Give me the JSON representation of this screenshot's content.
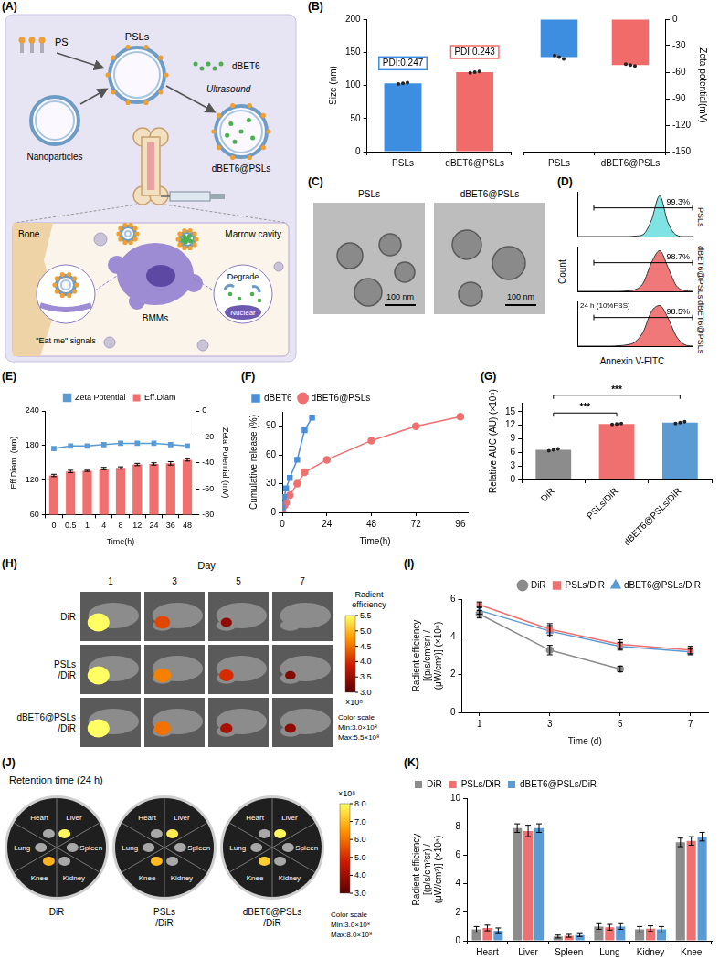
{
  "chart_data": [
    {
      "panel": "(B)",
      "type": "bar",
      "categories": [
        "PSLs",
        "dBET6@PSLs"
      ],
      "values": [
        103,
        120
      ],
      "colors": [
        "#3d8ee0",
        "#f26b6b"
      ],
      "points": [
        [
          102,
          103,
          104
        ],
        [
          119,
          120,
          121
        ]
      ],
      "annotations": [
        "PDI:0.247",
        "PDI:0.243"
      ],
      "y_label": "Size (nm)",
      "ylim": [
        0,
        200
      ],
      "yticks": [
        0,
        50,
        100,
        150,
        200
      ]
    },
    {
      "type": "bar",
      "categories": [
        "PSLs",
        "dBET6@PSLs"
      ],
      "values": [
        -43,
        -52
      ],
      "colors": [
        "#3d8ee0",
        "#f26b6b"
      ],
      "points": [
        [
          -41,
          -43,
          -45
        ],
        [
          -51,
          -52,
          -53
        ]
      ],
      "axis": "y2",
      "y2_label": "Zeta potential(mV)",
      "y2lim": [
        -150,
        0
      ],
      "y2ticks": [
        -150,
        -120,
        -90,
        -60,
        -30,
        0
      ]
    },
    {
      "panel": "(D)",
      "type": "area",
      "x_label": "Annexin V-FITC",
      "y_label": "Count",
      "x": [
        0,
        1,
        2,
        3,
        4,
        5,
        6,
        7,
        8,
        9,
        10,
        11,
        12,
        13,
        14
      ],
      "xlim": [
        0,
        14
      ],
      "ylim": [
        0,
        110
      ],
      "tick_labels": false,
      "series": [
        {
          "name": "PSLs",
          "color": "#7fe3e3",
          "values": [
            0,
            0,
            0,
            0,
            0,
            0,
            0,
            1,
            5,
            40,
            100,
            35,
            4,
            0,
            0
          ],
          "gate": [
            2,
            14
          ],
          "gate_label": "99.3%"
        },
        {
          "name": "dBET6@PSLs",
          "color": "#f07878",
          "values": [
            0,
            0,
            0,
            0,
            0,
            0,
            1,
            4,
            20,
            70,
            100,
            60,
            15,
            2,
            0
          ],
          "gate": [
            2,
            14
          ],
          "gate_label": "98.7%"
        },
        {
          "name": "dBET6@PSLs",
          "color": "#f07878",
          "annotation": "24 h (10%FBS)",
          "values": [
            0,
            0,
            0,
            0,
            0,
            1,
            3,
            10,
            35,
            85,
            100,
            70,
            25,
            4,
            0
          ],
          "gate": [
            2,
            14
          ],
          "gate_label": "98.5%"
        }
      ]
    },
    {
      "panel": "(E)",
      "type": "bar",
      "categories": [
        "0",
        "0.5",
        "1",
        "4",
        "8",
        "12",
        "24",
        "36",
        "48"
      ],
      "x_label": "Time(h)",
      "legend": "top",
      "series": [
        {
          "name": "Eff.Diam",
          "type": "bar",
          "color": "#f07070",
          "values": [
            128,
            135,
            136,
            140,
            141,
            147,
            148,
            149,
            155
          ],
          "errors": [
            2,
            2,
            1,
            2,
            2,
            2,
            2,
            3,
            2
          ]
        },
        {
          "name": "Zeta Potential",
          "type": "line",
          "color": "#5b9bd5",
          "marker": "square",
          "axis": "y2",
          "values": [
            -29,
            -27,
            -27,
            -26,
            -25,
            -25,
            -25,
            -26,
            -27
          ]
        }
      ],
      "y_label": "Eff.Diam. (nm)",
      "ylim": [
        60,
        240
      ],
      "yticks": [
        60,
        120,
        180,
        240
      ],
      "y2_label": "Zeta Potential (mV)",
      "y2lim": [
        -80,
        0
      ],
      "y2ticks": [
        -80,
        -60,
        -40,
        -20,
        0
      ]
    },
    {
      "panel": "(F)",
      "type": "line",
      "x_label": "Time(h)",
      "y_label": "Cumulative release (%)",
      "xlim": [
        0,
        100
      ],
      "xticks": [
        0,
        24,
        48,
        72,
        96
      ],
      "ylim": [
        0,
        105
      ],
      "yticks": [
        0,
        30,
        60,
        90
      ],
      "legend": "top-left",
      "series": [
        {
          "name": "dBET6",
          "color": "#4a90d9",
          "marker": "square",
          "x": [
            0,
            1,
            2,
            4,
            8,
            12,
            16
          ],
          "values": [
            5,
            16,
            25,
            36,
            55,
            86,
            99
          ]
        },
        {
          "name": "dBET6@PSLs",
          "color": "#f07070",
          "marker": "circle",
          "x": [
            0,
            1,
            2,
            4,
            8,
            12,
            24,
            48,
            72,
            96
          ],
          "values": [
            2,
            7,
            10,
            18,
            30,
            42,
            55,
            75,
            90,
            100
          ]
        }
      ]
    },
    {
      "panel": "(G)",
      "type": "bar",
      "categories": [
        "DiR",
        "PSLs/DiR",
        "dBET6@PSLs/DiR"
      ],
      "values": [
        6.6,
        12.3,
        12.6
      ],
      "colors": [
        "#8c8c8c",
        "#f07070",
        "#5b9bd5"
      ],
      "points": [
        [
          6.4,
          6.6,
          6.8
        ],
        [
          12.2,
          12.3,
          12.4
        ],
        [
          12.4,
          12.6,
          12.8
        ]
      ],
      "y_label": "Relative AUC (AU) (×10⁸)",
      "ylim": [
        0,
        17
      ],
      "yticks": [
        0,
        3,
        6,
        9,
        12,
        15
      ],
      "annotations": [
        {
          "from": "DiR",
          "to": "PSLs/DiR",
          "text": "***"
        },
        {
          "from": "DiR",
          "to": "dBET6@PSLs/DiR",
          "text": "***"
        }
      ]
    },
    {
      "panel": "(I)",
      "type": "line",
      "x": [
        1,
        3,
        5,
        7
      ],
      "x_label": "Time (d)",
      "y_label": "Radient efficiency [(p/s/cm²sr) / (μW/cm²)] (×10⁸)",
      "xlim": [
        0.5,
        7.5
      ],
      "xticks": [
        1,
        3,
        5,
        7
      ],
      "ylim": [
        0,
        6
      ],
      "yticks": [
        0,
        2,
        4,
        6
      ],
      "legend": "top-right",
      "series": [
        {
          "name": "DiR",
          "color": "#8c8c8c",
          "marker": "circle",
          "values": [
            5.2,
            3.3,
            2.3,
            null
          ],
          "errors": [
            0.2,
            0.25,
            0.15,
            null
          ]
        },
        {
          "name": "PSLs/DiR",
          "color": "#f07070",
          "marker": "square",
          "values": [
            5.7,
            4.4,
            3.6,
            3.3
          ],
          "errors": [
            0.15,
            0.3,
            0.25,
            0.2
          ]
        },
        {
          "name": "dBET6@PSLs/DiR",
          "color": "#5b9bd5",
          "marker": "triangle",
          "values": [
            5.4,
            4.3,
            3.5,
            3.2
          ],
          "errors": [
            0.2,
            0.3,
            0.2,
            0.15
          ]
        }
      ]
    },
    {
      "panel": "(K)",
      "type": "bar",
      "categories": [
        "Heart",
        "Liver",
        "Spleen",
        "Lung",
        "Kidney",
        "Knee"
      ],
      "y_label": "Radient efficiency [(p/s/cm²sr) / (μW/cm²)] (×10⁸)",
      "ylim": [
        0,
        10
      ],
      "yticks": [
        0,
        2,
        4,
        6,
        8,
        10
      ],
      "legend": "top-left",
      "series": [
        {
          "name": "DiR",
          "color": "#8c8c8c",
          "values": [
            0.8,
            7.9,
            0.3,
            1.0,
            0.8,
            6.9
          ],
          "errors": [
            0.2,
            0.3,
            0.1,
            0.2,
            0.2,
            0.3
          ]
        },
        {
          "name": "PSLs/DiR",
          "color": "#f07070",
          "values": [
            0.9,
            7.7,
            0.35,
            0.95,
            0.85,
            7.0
          ],
          "errors": [
            0.2,
            0.4,
            0.1,
            0.2,
            0.2,
            0.3
          ]
        },
        {
          "name": "dBET6@PSLs/DiR",
          "color": "#5b9bd5",
          "values": [
            0.7,
            7.9,
            0.4,
            1.0,
            0.8,
            7.3
          ],
          "errors": [
            0.2,
            0.3,
            0.1,
            0.2,
            0.2,
            0.3
          ]
        }
      ]
    }
  ],
  "diagrams": {
    "A": {
      "panel": "(A)",
      "labels": {
        "ps": "PS",
        "psls": "PSLs",
        "dbet6": "dBET6",
        "ultrasound": "Ultrasound",
        "nanoparticles": "Nanoparticles",
        "loaded": "dBET6@PSLs",
        "bone": "Bone",
        "marrow": "Marrow cavity",
        "bmms": "BMMs",
        "eat_me": "\"Eat me\" signals",
        "degrade": "Degrade",
        "nuclear": "Nuclear"
      }
    },
    "C": {
      "panel": "(C)",
      "images": [
        {
          "title": "PSLs",
          "scale_bar": "100 nm"
        },
        {
          "title": "dBET6@PSLs",
          "scale_bar": "100 nm"
        }
      ]
    },
    "H": {
      "panel": "(H)",
      "header": "Day",
      "days": [
        "1",
        "3",
        "5",
        "7"
      ],
      "rows": [
        "DiR",
        "PSLs/DiR",
        "dBET6@PSLs/DiR"
      ],
      "cells": [
        [
          5.5,
          4.2,
          3.4,
          null
        ],
        [
          5.5,
          4.6,
          4.0,
          3.3
        ],
        [
          5.5,
          4.5,
          3.6,
          3.4
        ]
      ],
      "colorbar": {
        "title": "Radient efficiency",
        "range": [
          3,
          5.5
        ],
        "ticks": [
          {
            "value": 3,
            "label": "3.0"
          },
          3.5,
          {
            "value": 4,
            "label": "4.0"
          },
          4.5,
          {
            "value": 5,
            "label": "5.0"
          },
          5.5
        ],
        "unit": "×10⁸",
        "scale_text": [
          "Color scale",
          "Min:3.0×10⁸",
          "Max:5.5×10⁸"
        ]
      }
    },
    "J": {
      "panel": "(J)",
      "title": "Retention time (24 h)",
      "organs": [
        "Heart",
        "Liver",
        "Spleen",
        "Kidney",
        "Knee",
        "Lung"
      ],
      "dishes": [
        {
          "label": "DiR",
          "values": [
            0.8,
            7.9,
            0.3,
            0.8,
            6.9,
            1.0
          ]
        },
        {
          "label": "PSLs/DiR",
          "values": [
            0.9,
            7.7,
            0.35,
            0.85,
            7.0,
            0.95
          ]
        },
        {
          "label": "dBET6@PSLs/DiR",
          "values": [
            0.7,
            7.9,
            0.4,
            0.8,
            7.3,
            1.0
          ]
        }
      ],
      "colorbar": {
        "range": [
          3,
          8
        ],
        "ticks": [
          {
            "value": 3,
            "label": "3.0"
          },
          {
            "value": 4,
            "label": "4.0"
          },
          {
            "value": 5,
            "label": "5.0"
          },
          {
            "value": 6,
            "label": "6.0"
          },
          {
            "value": 7,
            "label": "7.0"
          },
          {
            "value": 8,
            "label": "8.0"
          }
        ],
        "unit": "×10⁸",
        "scale_text": [
          "Color scale",
          "Min:3.0×10⁸",
          "Max:8.0×10⁸"
        ]
      }
    }
  }
}
